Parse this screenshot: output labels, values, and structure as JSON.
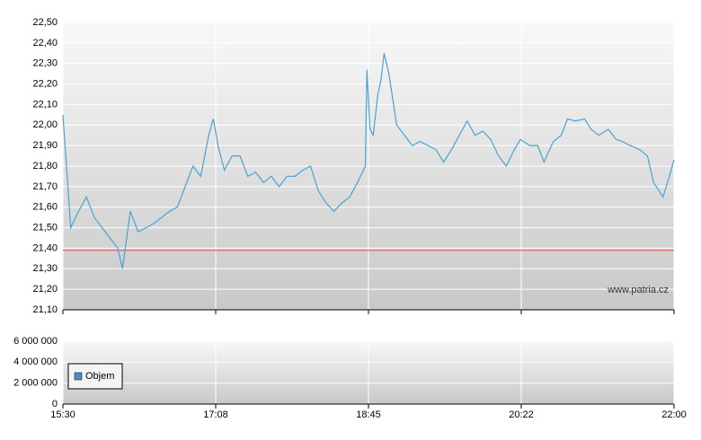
{
  "chart_data": [
    {
      "type": "line",
      "x": [
        930,
        935,
        940,
        945,
        950,
        955,
        960,
        965,
        968,
        973,
        978,
        983,
        988,
        993,
        998,
        1003,
        1008,
        1013,
        1018,
        1023,
        1026,
        1029,
        1033,
        1038,
        1043,
        1048,
        1053,
        1058,
        1063,
        1068,
        1073,
        1078,
        1083,
        1088,
        1093,
        1098,
        1103,
        1108,
        1113,
        1118,
        1123,
        1124,
        1126,
        1128,
        1131,
        1133,
        1135,
        1138,
        1140,
        1143,
        1148,
        1153,
        1158,
        1163,
        1168,
        1173,
        1178,
        1183,
        1188,
        1193,
        1198,
        1203,
        1208,
        1213,
        1218,
        1222,
        1228,
        1233,
        1237,
        1243,
        1248,
        1252,
        1257,
        1263,
        1267,
        1272,
        1278,
        1283,
        1287,
        1292,
        1298,
        1303,
        1307,
        1313,
        1317,
        1320
      ],
      "series": [
        {
          "color": "#4aa3d0",
          "values": [
            22.05,
            21.5,
            21.58,
            21.65,
            21.55,
            21.5,
            21.45,
            21.4,
            21.3,
            21.58,
            21.48,
            21.5,
            21.52,
            21.55,
            21.58,
            21.6,
            21.7,
            21.8,
            21.75,
            21.95,
            22.03,
            21.9,
            21.78,
            21.85,
            21.85,
            21.75,
            21.77,
            21.72,
            21.75,
            21.7,
            21.75,
            21.75,
            21.78,
            21.8,
            21.68,
            21.62,
            21.58,
            21.62,
            21.65,
            21.72,
            21.8,
            22.27,
            21.98,
            21.95,
            22.15,
            22.22,
            22.35,
            22.25,
            22.15,
            22.0,
            21.95,
            21.9,
            21.92,
            21.9,
            21.88,
            21.82,
            21.88,
            21.95,
            22.02,
            21.95,
            21.97,
            21.93,
            21.85,
            21.8,
            21.88,
            21.93,
            21.9,
            21.9,
            21.82,
            21.92,
            21.95,
            22.03,
            22.02,
            22.03,
            21.98,
            21.95,
            21.98,
            21.93,
            21.92,
            21.9,
            21.88,
            21.85,
            21.72,
            21.65,
            21.75,
            21.83
          ]
        }
      ],
      "xlim": [
        930,
        1320
      ],
      "xticks": [
        930,
        1027.5,
        1125,
        1222.5,
        1320
      ],
      "ylim": [
        21.1,
        22.5
      ],
      "yticks": [
        {
          "value": 21.1,
          "label": "21,10"
        },
        {
          "value": 21.2,
          "label": "21,20"
        },
        {
          "value": 21.3,
          "label": "21,30"
        },
        {
          "value": 21.4,
          "label": "21,40"
        },
        {
          "value": 21.5,
          "label": "21,50"
        },
        {
          "value": 21.6,
          "label": "21,60"
        },
        {
          "value": 21.7,
          "label": "21,70"
        },
        {
          "value": 21.8,
          "label": "21,80"
        },
        {
          "value": 21.9,
          "label": "21,90"
        },
        {
          "value": 22.0,
          "label": "22,00"
        },
        {
          "value": 22.1,
          "label": "22,10"
        },
        {
          "value": 22.2,
          "label": "22,20"
        },
        {
          "value": 22.3,
          "label": "22,30"
        },
        {
          "value": 22.4,
          "label": "22,40"
        },
        {
          "value": 22.5,
          "label": "22,50"
        }
      ],
      "reference_line": 21.39,
      "reference_color": "#e05050",
      "annotation": "www.patria.cz",
      "grid": true
    },
    {
      "type": "bar",
      "series": [
        {
          "name": "Objem",
          "color": "#4a90c8"
        }
      ],
      "xlim": [
        930,
        1320
      ],
      "xticks": [
        {
          "value": 930,
          "label": "15:30"
        },
        {
          "value": 1027.5,
          "label": "17:08"
        },
        {
          "value": 1125,
          "label": "18:45"
        },
        {
          "value": 1222.5,
          "label": "20:22"
        },
        {
          "value": 1320,
          "label": "22:00"
        }
      ],
      "ylim": [
        0,
        6000000
      ],
      "yticks": [
        {
          "value": 0,
          "label": "0"
        },
        {
          "value": 2000000,
          "label": "2 000 000"
        },
        {
          "value": 4000000,
          "label": "4 000 000"
        },
        {
          "value": 6000000,
          "label": "6 000 000"
        }
      ],
      "grid": true
    }
  ]
}
